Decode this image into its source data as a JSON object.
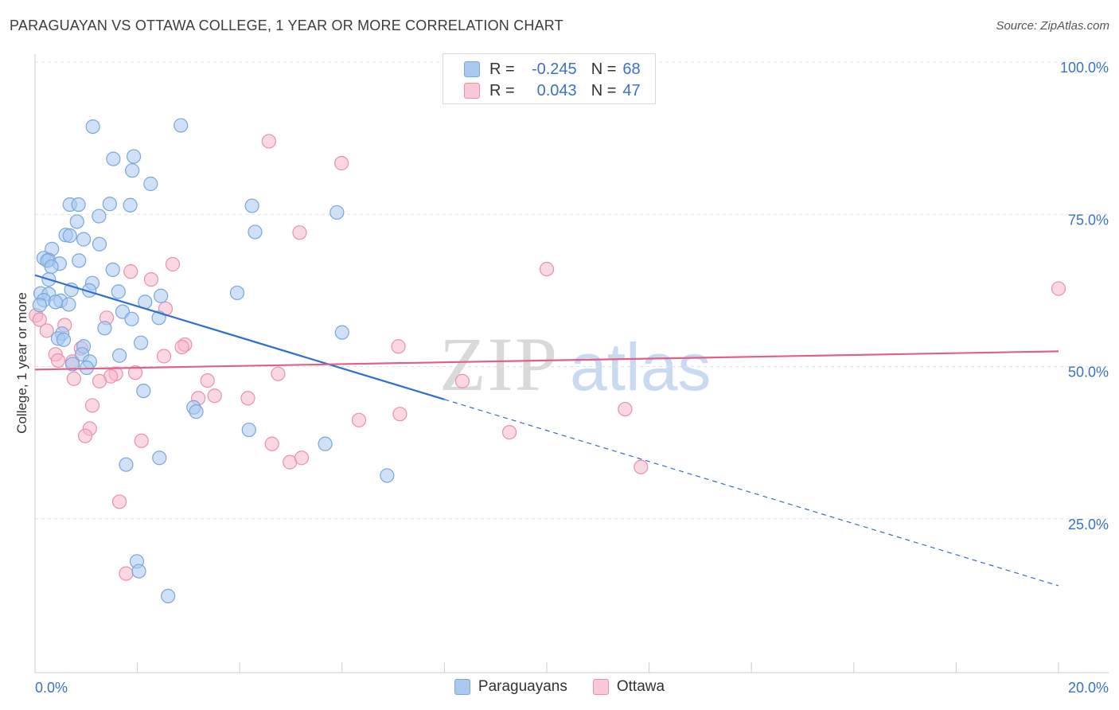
{
  "header": {
    "title": "PARAGUAYAN VS OTTAWA COLLEGE, 1 YEAR OR MORE CORRELATION CHART",
    "source": "Source: ZipAtlas.com"
  },
  "legend": {
    "rows": [
      {
        "r_label": "R =",
        "r_value": "-0.245",
        "n_label": "N =",
        "n_value": "68"
      },
      {
        "r_label": "R =",
        "r_value": "0.043",
        "n_label": "N =",
        "n_value": "47"
      }
    ]
  },
  "watermark": {
    "zip": "ZIP",
    "atlas": "atlas"
  },
  "colors": {
    "blue_fill": "#a8c8f0",
    "blue_stroke": "#7aa6dc",
    "blue_line": "#2f6fcf",
    "pink_fill": "#f5b8cb",
    "pink_stroke": "#ec8fad",
    "pink_line": "#e0608a",
    "axis_text": "#3a72c8",
    "grid": "#e2e2e2"
  },
  "chart_data": {
    "type": "scatter",
    "title": "PARAGUAYAN VS OTTAWA COLLEGE, 1 YEAR OR MORE CORRELATION CHART",
    "xlabel": "",
    "ylabel": "College, 1 year or more",
    "xlim": [
      0,
      20
    ],
    "ylim": [
      0,
      102
    ],
    "x_tick_labels": {
      "min": "0.0%",
      "max": "20.0%"
    },
    "y_ticks": [
      {
        "value": 25,
        "label": "25.0%"
      },
      {
        "value": 50,
        "label": "50.0%"
      },
      {
        "value": 75,
        "label": "75.0%"
      },
      {
        "value": 100,
        "label": "100.0%"
      }
    ],
    "series": [
      {
        "name": "Paraguayans",
        "color": "#a8c8f0",
        "r": -0.245,
        "n": 68,
        "trend": {
          "x0": 0,
          "y0": 65.0,
          "x1": 20,
          "y1": 14.0,
          "solid_until_x": 8.0
        },
        "points": [
          [
            1.13,
            89.4
          ],
          [
            2.85,
            89.6
          ],
          [
            1.53,
            84.1
          ],
          [
            1.93,
            84.5
          ],
          [
            1.9,
            82.2
          ],
          [
            2.26,
            80.0
          ],
          [
            0.68,
            76.6
          ],
          [
            0.85,
            76.6
          ],
          [
            1.46,
            76.7
          ],
          [
            1.86,
            76.5
          ],
          [
            4.24,
            76.4
          ],
          [
            5.9,
            75.3
          ],
          [
            1.25,
            74.7
          ],
          [
            0.82,
            73.8
          ],
          [
            4.3,
            72.1
          ],
          [
            0.6,
            71.6
          ],
          [
            0.68,
            71.5
          ],
          [
            0.95,
            70.9
          ],
          [
            1.26,
            70.1
          ],
          [
            0.33,
            69.3
          ],
          [
            0.17,
            67.8
          ],
          [
            0.27,
            67.5
          ],
          [
            0.24,
            67.4
          ],
          [
            0.86,
            67.4
          ],
          [
            0.48,
            66.9
          ],
          [
            0.32,
            66.4
          ],
          [
            1.52,
            65.9
          ],
          [
            0.27,
            64.3
          ],
          [
            1.12,
            63.7
          ],
          [
            0.71,
            62.6
          ],
          [
            1.06,
            62.5
          ],
          [
            1.63,
            62.3
          ],
          [
            0.11,
            62.0
          ],
          [
            0.27,
            61.9
          ],
          [
            3.95,
            62.1
          ],
          [
            2.46,
            61.6
          ],
          [
            0.17,
            60.9
          ],
          [
            0.5,
            60.8
          ],
          [
            0.4,
            60.6
          ],
          [
            2.15,
            60.6
          ],
          [
            0.66,
            60.2
          ],
          [
            0.09,
            60.1
          ],
          [
            1.71,
            59.0
          ],
          [
            2.42,
            58.0
          ],
          [
            1.89,
            57.8
          ],
          [
            1.36,
            56.3
          ],
          [
            6.0,
            55.6
          ],
          [
            0.53,
            55.4
          ],
          [
            0.45,
            54.6
          ],
          [
            0.56,
            54.4
          ],
          [
            2.07,
            53.9
          ],
          [
            0.95,
            53.3
          ],
          [
            1.65,
            51.8
          ],
          [
            0.92,
            52.0
          ],
          [
            1.07,
            50.8
          ],
          [
            0.73,
            50.4
          ],
          [
            1.01,
            49.8
          ],
          [
            2.12,
            46.0
          ],
          [
            3.1,
            43.3
          ],
          [
            3.15,
            42.6
          ],
          [
            4.18,
            39.6
          ],
          [
            5.67,
            37.3
          ],
          [
            1.78,
            33.9
          ],
          [
            2.43,
            35.0
          ],
          [
            6.88,
            32.1
          ],
          [
            1.99,
            18.0
          ],
          [
            2.03,
            16.4
          ],
          [
            2.6,
            12.3
          ]
        ]
      },
      {
        "name": "Ottawa",
        "color": "#f5b8cb",
        "r": 0.043,
        "n": 47,
        "trend": {
          "x0": 0,
          "y0": 49.5,
          "x1": 20,
          "y1": 52.5
        },
        "points": [
          [
            4.57,
            87.0
          ],
          [
            5.99,
            83.4
          ],
          [
            5.17,
            72.0
          ],
          [
            10.0,
            66.0
          ],
          [
            2.69,
            66.8
          ],
          [
            1.87,
            65.6
          ],
          [
            2.27,
            64.3
          ],
          [
            20.0,
            62.8
          ],
          [
            2.55,
            59.5
          ],
          [
            0.02,
            58.4
          ],
          [
            0.09,
            57.7
          ],
          [
            1.4,
            58.0
          ],
          [
            0.58,
            56.8
          ],
          [
            0.23,
            55.9
          ],
          [
            0.4,
            52.0
          ],
          [
            0.9,
            53.0
          ],
          [
            2.93,
            53.6
          ],
          [
            2.87,
            53.2
          ],
          [
            7.1,
            53.3
          ],
          [
            2.52,
            51.7
          ],
          [
            0.45,
            51.0
          ],
          [
            0.73,
            50.8
          ],
          [
            1.58,
            48.8
          ],
          [
            1.96,
            49.0
          ],
          [
            1.48,
            48.4
          ],
          [
            4.75,
            48.8
          ],
          [
            0.76,
            48.0
          ],
          [
            1.26,
            47.6
          ],
          [
            3.37,
            47.7
          ],
          [
            8.35,
            47.6
          ],
          [
            3.19,
            44.8
          ],
          [
            3.51,
            45.2
          ],
          [
            4.16,
            44.8
          ],
          [
            1.12,
            43.6
          ],
          [
            7.13,
            42.2
          ],
          [
            6.33,
            41.2
          ],
          [
            11.53,
            43.0
          ],
          [
            1.07,
            39.8
          ],
          [
            0.98,
            38.6
          ],
          [
            2.08,
            37.8
          ],
          [
            9.27,
            39.2
          ],
          [
            4.63,
            37.3
          ],
          [
            4.98,
            34.3
          ],
          [
            5.21,
            35.0
          ],
          [
            11.84,
            33.5
          ],
          [
            1.65,
            27.8
          ],
          [
            1.78,
            16.0
          ]
        ]
      }
    ]
  },
  "bottom_legend": {
    "items": [
      "Paraguayans",
      "Ottawa"
    ]
  }
}
